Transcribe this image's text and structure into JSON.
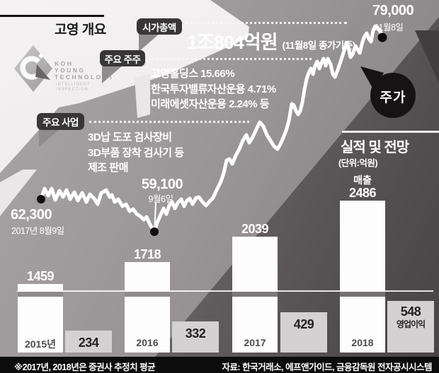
{
  "header": {
    "title": "고영 개요"
  },
  "logo": {
    "line1": "KOH",
    "line2": "YOUNG",
    "line3": "TECHNOLOGY",
    "sub1": "INTELLIGENT",
    "sub2": "INSPECTION"
  },
  "callouts": {
    "market_cap": {
      "label": "시가총액",
      "value": "1조804억원",
      "value_note": "(11월8일 종가기준)"
    },
    "shareholders": {
      "label": "주요 주주",
      "items": [
        "고영홀딩스 15.66%",
        "한국투자밸류자산운용 4.71%",
        "미래에셋자산운용 2.24% 등"
      ]
    },
    "business": {
      "label": "주요 사업",
      "items": [
        "3D납 도포 검사장비",
        "3D부품 장착 검사기 등",
        "제조 판매"
      ]
    }
  },
  "stock": {
    "name": "주가",
    "start": {
      "price": "62,300",
      "date": "2017년 8월9일"
    },
    "low": {
      "price": "59,100",
      "date": "9월6일"
    },
    "end": {
      "price": "79,000",
      "date": "11월8일"
    }
  },
  "performance": {
    "title": "실적 및 전망",
    "unit": "(단위:억원)",
    "revenue_label": "매출",
    "profit_label": "영업이익",
    "groups": [
      {
        "year": "2015년",
        "revenue": "1459",
        "profit": "234"
      },
      {
        "year": "2016",
        "revenue": "1718",
        "profit": "332"
      },
      {
        "year": "2017",
        "revenue": "2039",
        "profit": "429"
      },
      {
        "year": "2018",
        "revenue": "2486",
        "profit": "548"
      }
    ]
  },
  "footer": {
    "note": "※2017년, 2018년은 증권사 추정치 평균",
    "source": "자료: 한국거래소, 에프앤가이드, 금융감독원 전자공시시스템"
  },
  "colors": {
    "light_bg": "#f0eeee",
    "mid_bg": "#9b9798",
    "dark_bg": "#5a5657",
    "label_box": "#383637",
    "line": "#ffffff",
    "bar_white": "#fdfdfd",
    "bar_gray": "#d3d1d2",
    "footer_bg": "#0c0c0c",
    "bubble": "#151314"
  },
  "chart_data": [
    {
      "type": "line",
      "title": "주가",
      "x": [
        "2017년 8월9일",
        "9월6일",
        "11월8일"
      ],
      "values": [
        62300,
        59100,
        79000
      ],
      "ylabel": "원",
      "legend_position": "none",
      "grid": false
    },
    {
      "type": "bar",
      "title": "실적 및 전망",
      "unit": "억원",
      "categories": [
        "2015년",
        "2016",
        "2017",
        "2018"
      ],
      "series": [
        {
          "name": "매출",
          "values": [
            1459,
            1718,
            2039,
            2486
          ]
        },
        {
          "name": "영업이익",
          "values": [
            234,
            332,
            429,
            548
          ]
        }
      ],
      "note": "※2017년, 2018년은 증권사 추정치 평균",
      "ylim": [
        0,
        2600
      ],
      "grid": false
    }
  ]
}
